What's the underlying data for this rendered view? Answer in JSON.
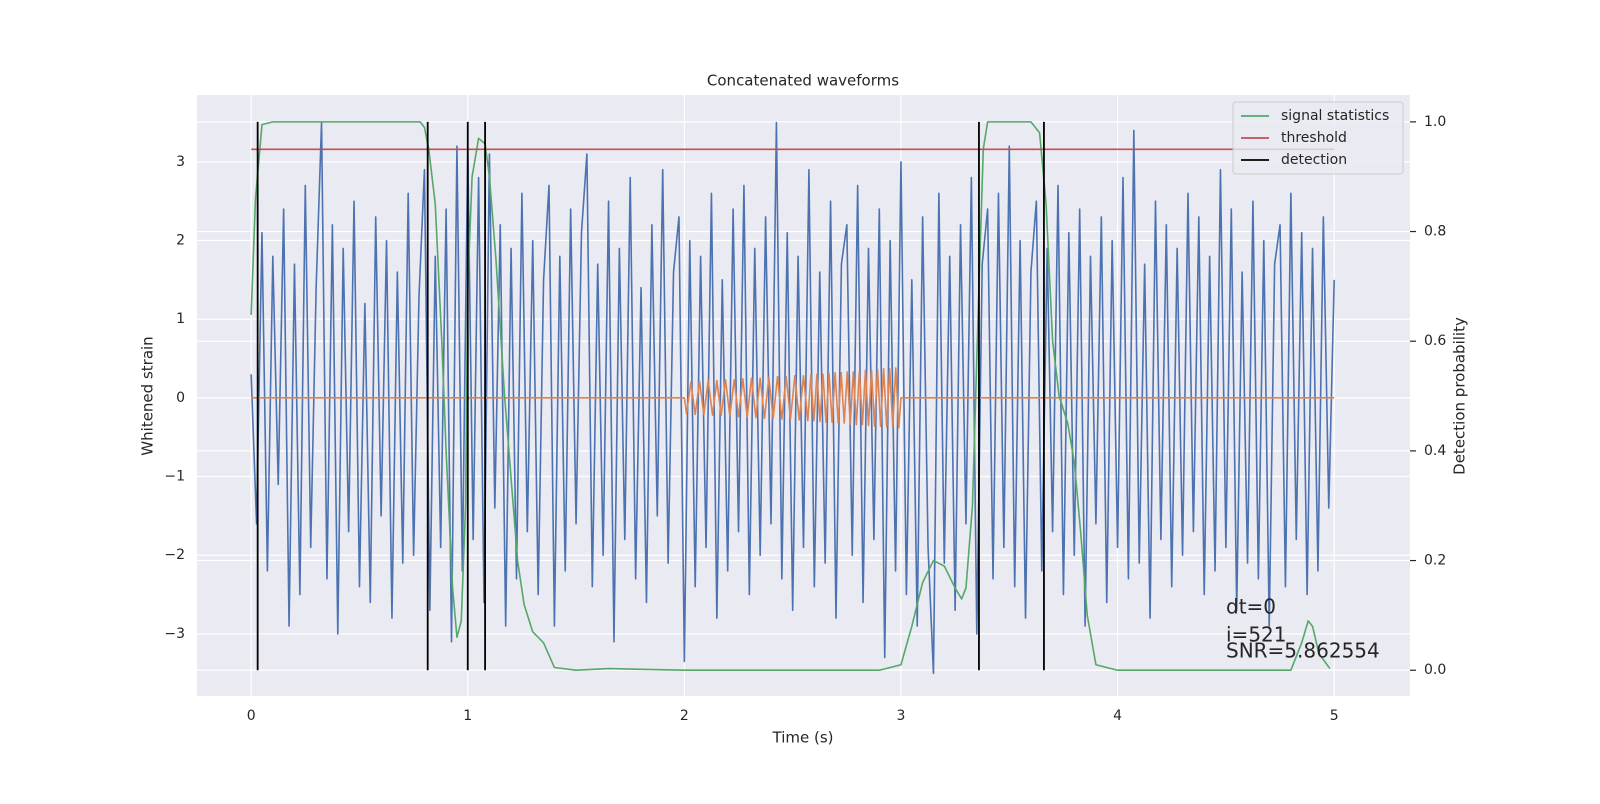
{
  "chart_data": {
    "type": "line",
    "title": "Concatenated waveforms",
    "x_label": "Time (s)",
    "y_label": "Whitened strain",
    "y2_label": "Detection probability",
    "xlim": [
      -0.25,
      5.35
    ],
    "ylim": [
      -3.79,
      3.85
    ],
    "y2lim": [
      -0.047,
      1.049
    ],
    "xticks": [
      0,
      1,
      2,
      3,
      4,
      5
    ],
    "yticks": [
      {
        "value": -3,
        "label": "−3"
      },
      {
        "value": -2,
        "label": "−2"
      },
      {
        "value": -1,
        "label": "−1"
      },
      0,
      1,
      2,
      3
    ],
    "y2ticks": [
      {
        "value": 0,
        "label": "0.0"
      },
      0.2,
      0.4,
      0.6,
      0.8,
      {
        "value": 1,
        "label": "1.0"
      }
    ],
    "grid": true,
    "legend": "upper right",
    "background": "#eaeaf2",
    "series": [
      {
        "name": null,
        "type": "line",
        "color": "#4c72b0",
        "axis": "y",
        "x": [
          0,
          0.025,
          0.05,
          0.075,
          0.1,
          0.125,
          0.15,
          0.175,
          0.2,
          0.225,
          0.25,
          0.275,
          0.3,
          0.325,
          0.35,
          0.375,
          0.4,
          0.425,
          0.45,
          0.475,
          0.5,
          0.525,
          0.55,
          0.575,
          0.6,
          0.625,
          0.65,
          0.675,
          0.7,
          0.725,
          0.75,
          0.775,
          0.8,
          0.825,
          0.85,
          0.875,
          0.9,
          0.925,
          0.95,
          0.975,
          1,
          1.025,
          1.05,
          1.075,
          1.1,
          1.125,
          1.15,
          1.175,
          1.2,
          1.225,
          1.25,
          1.275,
          1.3,
          1.325,
          1.35,
          1.375,
          1.4,
          1.425,
          1.45,
          1.475,
          1.5,
          1.525,
          1.55,
          1.575,
          1.6,
          1.625,
          1.65,
          1.675,
          1.7,
          1.725,
          1.75,
          1.775,
          1.8,
          1.825,
          1.85,
          1.875,
          1.9,
          1.925,
          1.95,
          1.975,
          2,
          2.025,
          2.05,
          2.075,
          2.1,
          2.125,
          2.15,
          2.175,
          2.2,
          2.225,
          2.25,
          2.275,
          2.3,
          2.325,
          2.35,
          2.375,
          2.4,
          2.425,
          2.45,
          2.475,
          2.5,
          2.525,
          2.55,
          2.575,
          2.6,
          2.625,
          2.65,
          2.675,
          2.7,
          2.725,
          2.75,
          2.775,
          2.8,
          2.825,
          2.85,
          2.875,
          2.9,
          2.925,
          2.95,
          2.975,
          3,
          3.025,
          3.05,
          3.075,
          3.1,
          3.125,
          3.15,
          3.175,
          3.2,
          3.225,
          3.25,
          3.275,
          3.3,
          3.325,
          3.35,
          3.375,
          3.4,
          3.425,
          3.45,
          3.475,
          3.5,
          3.525,
          3.55,
          3.575,
          3.6,
          3.625,
          3.65,
          3.675,
          3.7,
          3.725,
          3.75,
          3.775,
          3.8,
          3.825,
          3.85,
          3.875,
          3.9,
          3.925,
          3.95,
          3.975,
          4,
          4.025,
          4.05,
          4.075,
          4.1,
          4.125,
          4.15,
          4.175,
          4.2,
          4.225,
          4.25,
          4.275,
          4.3,
          4.325,
          4.35,
          4.375,
          4.4,
          4.425,
          4.45,
          4.475,
          4.5,
          4.525,
          4.55,
          4.575,
          4.6,
          4.625,
          4.65,
          4.675,
          4.7,
          4.725,
          4.75,
          4.775,
          4.8,
          4.825,
          4.85,
          4.875,
          4.9,
          4.925,
          4.95,
          4.975,
          5
        ],
        "values": [
          0.3,
          -1.6,
          2.1,
          -2.2,
          1.8,
          -1.1,
          2.4,
          -2.9,
          1.7,
          -2.5,
          2.7,
          -1.9,
          1.4,
          3.5,
          -2.3,
          2.2,
          -3.0,
          1.9,
          -1.7,
          2.5,
          -2.4,
          1.2,
          -2.6,
          2.3,
          -1.5,
          2.0,
          -2.8,
          1.6,
          -2.1,
          2.6,
          -2.0,
          1.3,
          2.9,
          -2.7,
          1.8,
          -1.9,
          2.4,
          -3.1,
          3.2,
          -2.2,
          3.15,
          -1.8,
          2.8,
          -2.6,
          3.1,
          -1.4,
          2.2,
          -2.9,
          1.9,
          -2.3,
          2.6,
          -1.7,
          2.0,
          -2.5,
          1.5,
          2.7,
          -2.9,
          1.8,
          -2.2,
          2.4,
          -1.6,
          2.1,
          3.1,
          -2.4,
          1.7,
          -2.0,
          2.5,
          -3.1,
          1.9,
          -1.8,
          2.8,
          -2.3,
          1.4,
          -2.6,
          2.2,
          -1.5,
          2.9,
          -2.1,
          1.6,
          2.3,
          -3.35,
          2.0,
          -2.4,
          1.8,
          -1.9,
          2.6,
          -2.8,
          1.5,
          -2.2,
          2.4,
          -1.7,
          2.7,
          -2.5,
          1.9,
          -2.0,
          2.3,
          -1.6,
          3.5,
          -2.3,
          2.1,
          -2.7,
          1.8,
          -1.9,
          2.9,
          -2.4,
          1.6,
          -2.1,
          2.5,
          -2.8,
          1.7,
          2.2,
          -2.0,
          2.7,
          -2.6,
          1.9,
          -1.8,
          2.4,
          -3.3,
          2.0,
          -2.2,
          3.0,
          -2.5,
          1.5,
          -2.9,
          2.3,
          -1.9,
          -3.5,
          2.6,
          -2.1,
          1.8,
          -2.7,
          2.2,
          -1.6,
          2.8,
          -3.0,
          1.7,
          2.4,
          -2.3,
          2.6,
          -1.9,
          3.2,
          -2.4,
          2.0,
          -2.8,
          1.6,
          2.5,
          -2.2,
          1.9,
          -1.7,
          2.7,
          -2.5,
          2.1,
          -2.0,
          2.4,
          -2.9,
          1.8,
          -1.6,
          2.3,
          -2.6,
          2.0,
          -1.9,
          2.8,
          -2.3,
          3.4,
          -2.1,
          1.7,
          -2.8,
          2.5,
          -1.8,
          2.2,
          -2.4,
          1.9,
          -2.0,
          2.6,
          -1.7,
          2.3,
          -2.5,
          1.8,
          -2.2,
          2.9,
          -1.9,
          2.4,
          -2.7,
          1.6,
          -2.1,
          2.5,
          -2.3,
          2.0,
          -2.9,
          1.7,
          2.2,
          -2.4,
          2.6,
          -1.8,
          2.1,
          -2.5,
          1.9,
          -2.2,
          2.3,
          -1.4,
          1.5
        ]
      },
      {
        "name": null,
        "type": "line",
        "color": "#dd8452",
        "axis": "y",
        "x": [
          0,
          2,
          2.01,
          2.03,
          2.05,
          2.07,
          2.09,
          2.11,
          2.13,
          2.15,
          2.17,
          2.19,
          2.21,
          2.23,
          2.25,
          2.27,
          2.29,
          2.31,
          2.33,
          2.35,
          2.37,
          2.39,
          2.41,
          2.43,
          2.45,
          2.47,
          2.49,
          2.51,
          2.53,
          2.55,
          2.57,
          2.584,
          2.598,
          2.612,
          2.626,
          2.64,
          2.654,
          2.668,
          2.682,
          2.696,
          2.71,
          2.724,
          2.738,
          2.752,
          2.766,
          2.78,
          2.794,
          2.808,
          2.822,
          2.836,
          2.85,
          2.864,
          2.878,
          2.892,
          2.906,
          2.92,
          2.934,
          2.948,
          2.962,
          2.976,
          2.99,
          3,
          5
        ],
        "values": [
          0,
          0,
          -0.2,
          0.2,
          -0.21,
          0.21,
          -0.21,
          0.22,
          -0.22,
          0.22,
          -0.22,
          0.23,
          -0.23,
          0.23,
          -0.24,
          0.24,
          -0.24,
          0.25,
          -0.25,
          0.25,
          -0.26,
          0.26,
          -0.26,
          0.27,
          -0.27,
          0.27,
          -0.27,
          0.28,
          -0.28,
          0.28,
          -0.29,
          0.29,
          -0.29,
          0.3,
          -0.3,
          0.3,
          -0.31,
          0.31,
          -0.31,
          0.32,
          -0.32,
          0.32,
          -0.32,
          0.33,
          -0.33,
          0.33,
          -0.34,
          0.34,
          -0.34,
          0.35,
          -0.35,
          0.35,
          -0.36,
          0.36,
          -0.36,
          0.37,
          -0.37,
          0.37,
          -0.37,
          0.38,
          -0.38,
          0,
          0
        ]
      },
      {
        "name": "signal statistics",
        "type": "line",
        "color": "#55a868",
        "axis": "y2",
        "x": [
          0,
          0.02,
          0.05,
          0.1,
          0.78,
          0.8,
          0.82,
          0.85,
          0.88,
          0.9,
          0.93,
          0.95,
          0.97,
          0.99,
          1.0,
          1.02,
          1.05,
          1.08,
          1.1,
          1.13,
          1.17,
          1.2,
          1.23,
          1.26,
          1.3,
          1.35,
          1.4,
          1.5,
          1.65,
          2.0,
          2.9,
          3.0,
          3.05,
          3.1,
          3.15,
          3.2,
          3.25,
          3.28,
          3.3,
          3.33,
          3.36,
          3.38,
          3.4,
          3.6,
          3.64,
          3.67,
          3.7,
          3.73,
          3.77,
          3.8,
          3.83,
          3.86,
          3.9,
          4.0,
          4.8,
          4.85,
          4.88,
          4.9,
          4.93,
          4.98
        ],
        "values": [
          0.648,
          0.86,
          0.995,
          1.0,
          1.0,
          0.99,
          0.95,
          0.85,
          0.6,
          0.4,
          0.15,
          0.06,
          0.09,
          0.3,
          0.7,
          0.9,
          0.97,
          0.96,
          0.9,
          0.75,
          0.5,
          0.35,
          0.2,
          0.12,
          0.07,
          0.05,
          0.005,
          0.0,
          0.003,
          0.0,
          0.0,
          0.01,
          0.08,
          0.16,
          0.2,
          0.19,
          0.15,
          0.13,
          0.15,
          0.3,
          0.7,
          0.95,
          1.0,
          1.0,
          0.98,
          0.85,
          0.6,
          0.5,
          0.45,
          0.38,
          0.25,
          0.1,
          0.01,
          0.0,
          0.0,
          0.05,
          0.09,
          0.08,
          0.03,
          0.003
        ]
      },
      {
        "name": "threshold",
        "type": "line",
        "color": "#c44e52",
        "axis": "y2",
        "x": [
          0,
          5
        ],
        "values": [
          0.95,
          0.95
        ]
      },
      {
        "name": "detection",
        "type": "vlines",
        "color": "#000000",
        "axis": "y2",
        "x": [
          0.03,
          0.815,
          1.0,
          1.08,
          3.36,
          3.66
        ],
        "range": [
          0,
          1
        ]
      }
    ],
    "annotations": [
      "dt=0",
      "i=521",
      "SNR=5.862554"
    ]
  }
}
